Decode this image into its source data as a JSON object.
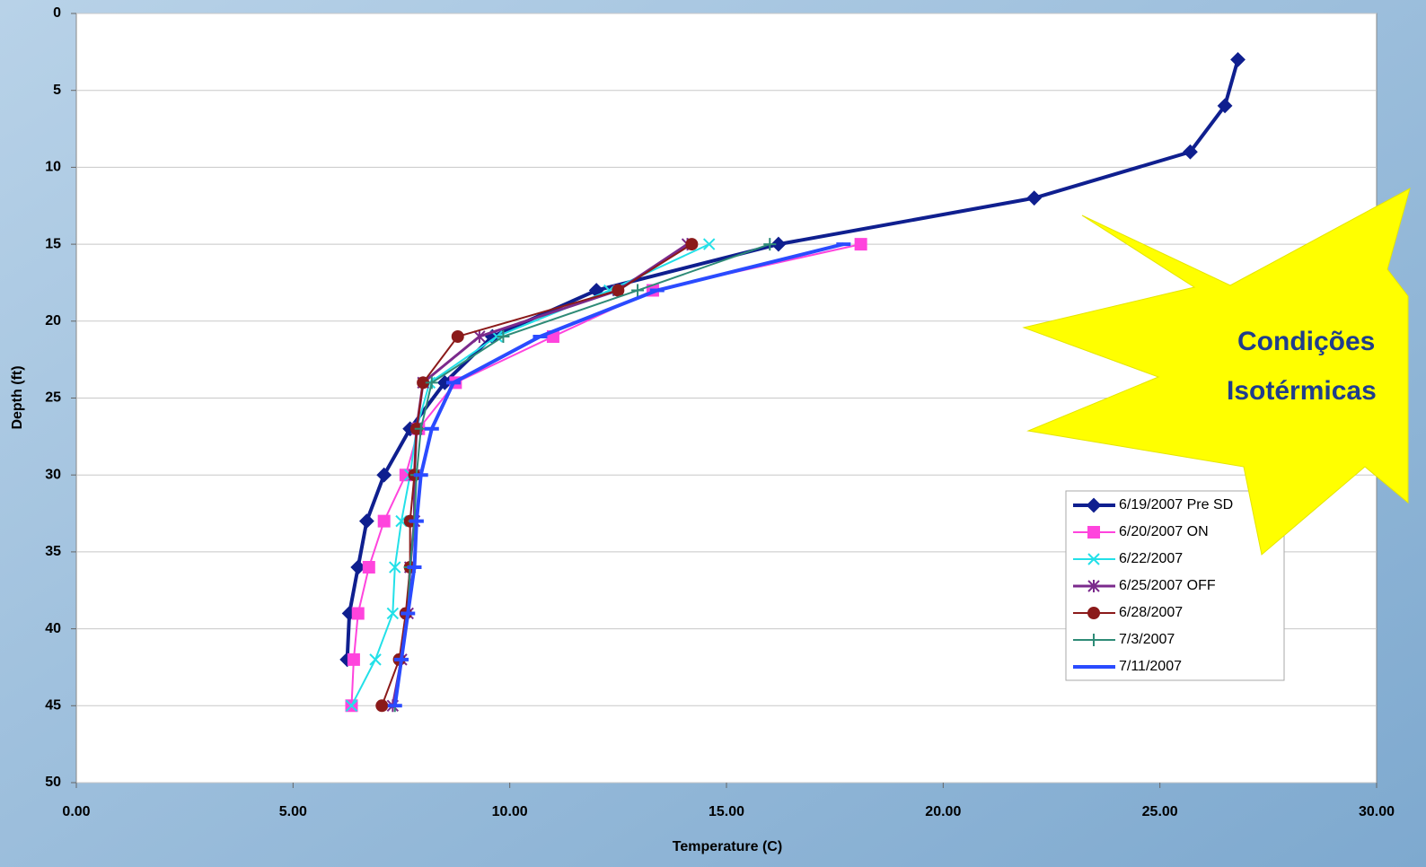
{
  "chart_data": {
    "type": "line",
    "xlabel": "Temperature (C)",
    "ylabel": "Depth (ft)",
    "xlim": [
      0,
      30
    ],
    "ylim": [
      0,
      50
    ],
    "y_inverted": true,
    "grid": true,
    "legend": "center-right",
    "xticks": [
      {
        "value": 0,
        "label": "0.00"
      },
      {
        "value": 5,
        "label": "5.00"
      },
      {
        "value": 10,
        "label": "10.00"
      },
      {
        "value": 15,
        "label": "15.00"
      },
      {
        "value": 20,
        "label": "20.00"
      },
      {
        "value": 25,
        "label": "25.00"
      },
      {
        "value": 30,
        "label": "30.00"
      }
    ],
    "yticks": [
      0,
      5,
      10,
      15,
      20,
      25,
      30,
      35,
      40,
      45,
      50
    ],
    "annotation": [
      "Condições",
      "Isotérmicas"
    ],
    "series": [
      {
        "name": "6/19/2007 Pre SD",
        "color": "#0f1f8f",
        "marker": "diamond",
        "width": 4,
        "x": [
          26.8,
          26.5,
          25.7,
          22.1,
          16.2,
          12.0,
          9.6,
          8.5,
          7.7,
          7.1,
          6.7,
          6.5,
          6.3,
          6.25
        ],
        "values": [
          3,
          6,
          9,
          12,
          15,
          18,
          21,
          24,
          27,
          30,
          33,
          36,
          39,
          42
        ]
      },
      {
        "name": "6/20/2007 ON",
        "color": "#ff44dd",
        "marker": "square",
        "width": 2,
        "x": [
          18.1,
          13.3,
          11.0,
          8.75,
          7.9,
          7.6,
          7.1,
          6.75,
          6.5,
          6.4,
          6.35
        ],
        "values": [
          15,
          18,
          21,
          24,
          27,
          30,
          33,
          36,
          39,
          42,
          45
        ]
      },
      {
        "name": "6/22/2007",
        "color": "#22e0e8",
        "marker": "x",
        "width": 2,
        "x": [
          14.6,
          12.3,
          9.7,
          8.15,
          7.85,
          7.7,
          7.5,
          7.35,
          7.3,
          6.9,
          6.35
        ],
        "values": [
          15,
          18,
          21,
          24,
          27,
          30,
          33,
          36,
          39,
          42,
          45
        ]
      },
      {
        "name": "6/25/2007 OFF",
        "color": "#7b2a8c",
        "marker": "star",
        "width": 3,
        "x": [
          14.1,
          12.5,
          9.3,
          8.0,
          7.85,
          7.8,
          7.8,
          7.7,
          7.65,
          7.5,
          7.3
        ],
        "values": [
          15,
          18,
          21,
          24,
          27,
          30,
          33,
          36,
          39,
          42,
          45
        ]
      },
      {
        "name": "6/28/2007",
        "color": "#8b1a1a",
        "marker": "circle",
        "width": 2,
        "x": [
          14.2,
          12.5,
          8.8,
          8.0,
          7.85,
          7.8,
          7.7,
          7.7,
          7.6,
          7.45,
          7.05
        ],
        "values": [
          15,
          18,
          21,
          24,
          27,
          30,
          33,
          36,
          39,
          42,
          45
        ]
      },
      {
        "name": "7/3/2007",
        "color": "#2e8b77",
        "marker": "plus",
        "width": 2,
        "x": [
          16.0,
          12.95,
          9.85,
          8.2,
          7.95,
          7.85,
          7.8,
          7.7,
          7.65,
          7.5,
          7.35
        ],
        "values": [
          15,
          18,
          21,
          24,
          27,
          30,
          33,
          36,
          39,
          42,
          45
        ]
      },
      {
        "name": "7/11/2007",
        "color": "#2a4bff",
        "marker": "dash",
        "width": 4,
        "x": [
          17.7,
          13.4,
          10.7,
          8.7,
          8.2,
          7.95,
          7.85,
          7.8,
          7.65,
          7.5,
          7.35
        ],
        "values": [
          15,
          18,
          21,
          24,
          27,
          30,
          33,
          36,
          39,
          42,
          45
        ]
      }
    ]
  }
}
